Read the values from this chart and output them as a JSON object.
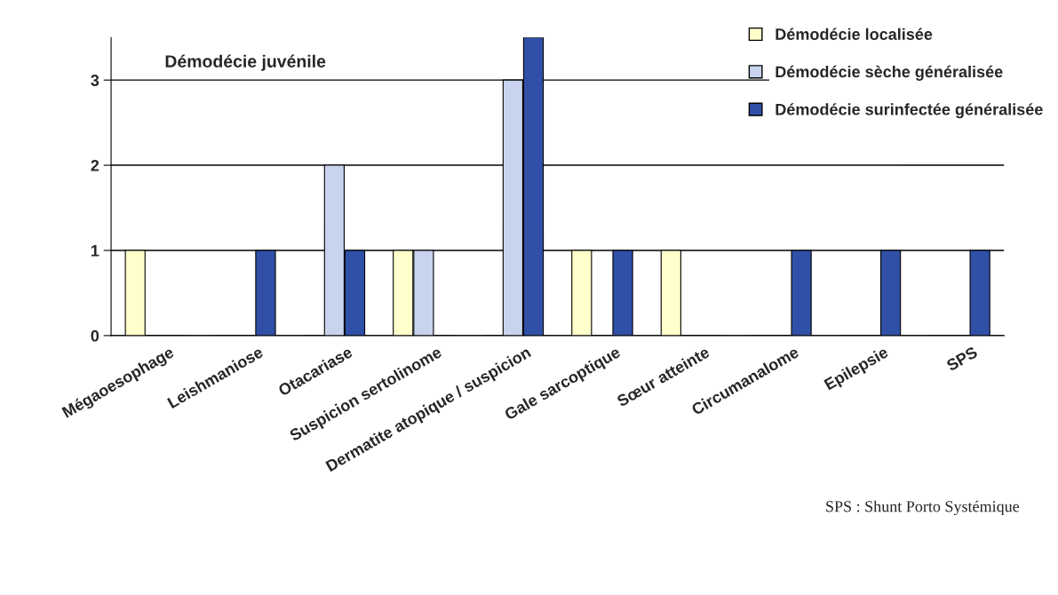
{
  "chart_data": {
    "type": "bar",
    "title": "Démodécie juvénile",
    "categories": [
      "Mégaoesophage",
      "Leishmaniose",
      "Otacariase",
      "Suspicion sertolinome",
      "Dermatite atopique / suspicion",
      "Gale sarcoptique",
      "Sœur atteinte",
      "Circumanalome",
      "Epilepsie",
      "SPS"
    ],
    "series": [
      {
        "name": "Démodécie localisée",
        "color": "#ffffcc",
        "values": [
          1,
          0,
          0,
          1,
          0,
          1,
          1,
          0,
          0,
          0
        ]
      },
      {
        "name": "Démodécie sèche généralisée",
        "color": "#c8d4ee",
        "values": [
          0,
          0,
          2,
          1,
          3,
          0,
          0,
          0,
          0,
          0
        ]
      },
      {
        "name": "Démodécie surinfectée généralisée",
        "color": "#3050a8",
        "values": [
          0,
          1,
          1,
          0,
          3.5,
          1,
          0,
          1,
          1,
          1
        ]
      }
    ],
    "ylim": [
      0,
      3.5
    ],
    "yticks": [
      0,
      1,
      2,
      3
    ],
    "grid": "y",
    "legend": "top right",
    "annotations": [
      "SPS : Shunt Porto Systémique"
    ]
  }
}
